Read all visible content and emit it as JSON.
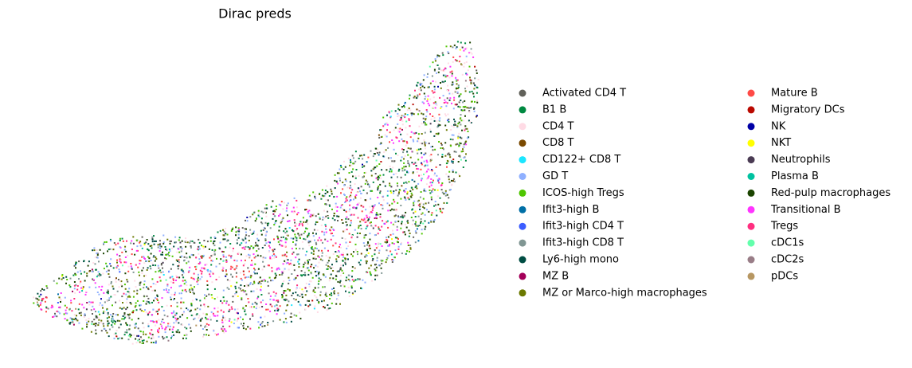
{
  "chart_data": {
    "type": "scatter",
    "title": "Dirac preds",
    "legend": "right",
    "series": [
      {
        "name": "Activated CD4 T",
        "color": "#61615A"
      },
      {
        "name": "B1 B",
        "color": "#008941"
      },
      {
        "name": "CD4 T",
        "color": "#FFDBE5"
      },
      {
        "name": "CD8 T",
        "color": "#7A4900"
      },
      {
        "name": "CD122+ CD8 T",
        "color": "#1CE6FF"
      },
      {
        "name": "GD T",
        "color": "#8FB0FF"
      },
      {
        "name": "ICOS-high Tregs",
        "color": "#4FC601"
      },
      {
        "name": "Ifit3-high B",
        "color": "#006FA6"
      },
      {
        "name": "Ifit3-high CD4 T",
        "color": "#3B5DFF"
      },
      {
        "name": "Ifit3-high CD8 T",
        "color": "#809693"
      },
      {
        "name": "Ly6-high mono",
        "color": "#004D43"
      },
      {
        "name": "MZ B",
        "color": "#A30059"
      },
      {
        "name": "MZ or Marco-high macrophages",
        "color": "#6B7900"
      },
      {
        "name": "Mature B",
        "color": "#FF4A46"
      },
      {
        "name": "Migratory DCs",
        "color": "#BA0900"
      },
      {
        "name": "NK",
        "color": "#0000A6"
      },
      {
        "name": "NKT",
        "color": "#FFFF00"
      },
      {
        "name": "Neutrophils",
        "color": "#4A3B53"
      },
      {
        "name": "Plasma B",
        "color": "#00C2A0"
      },
      {
        "name": "Red-pulp macrophages",
        "color": "#1B4400"
      },
      {
        "name": "Transitional B",
        "color": "#FF34FF"
      },
      {
        "name": "Tregs",
        "color": "#FF2F80"
      },
      {
        "name": "cDC1s",
        "color": "#63FFAC"
      },
      {
        "name": "cDC2s",
        "color": "#997D87"
      },
      {
        "name": "pDCs",
        "color": "#B79762"
      }
    ]
  }
}
